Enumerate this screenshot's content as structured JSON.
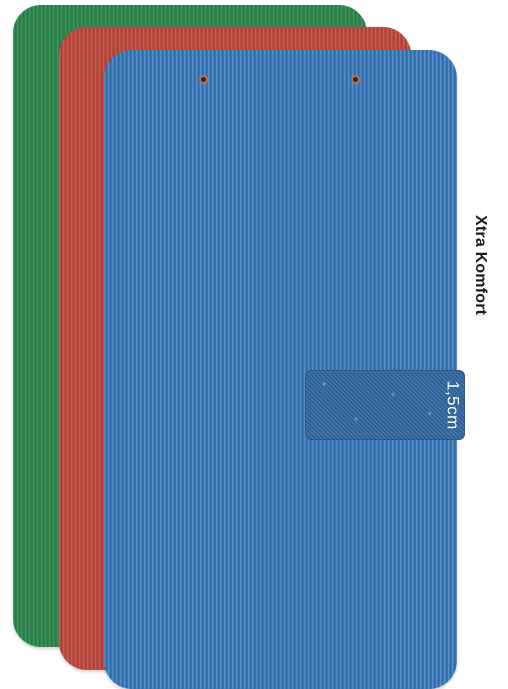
{
  "image": {
    "product_name": "Xtra Komfort",
    "thickness_label": "1,5cm",
    "colors": {
      "mat_green": "#2c8b4e",
      "mat_red": "#c44a3f",
      "mat_blue": "#3c7fc2",
      "background": "#ffffff",
      "text_dark": "#1b1b1b",
      "text_light": "#ffffff"
    },
    "elements": {
      "mats": [
        "green",
        "red",
        "blue"
      ],
      "has_hanging_holes": true,
      "has_foam_sample": true
    }
  }
}
